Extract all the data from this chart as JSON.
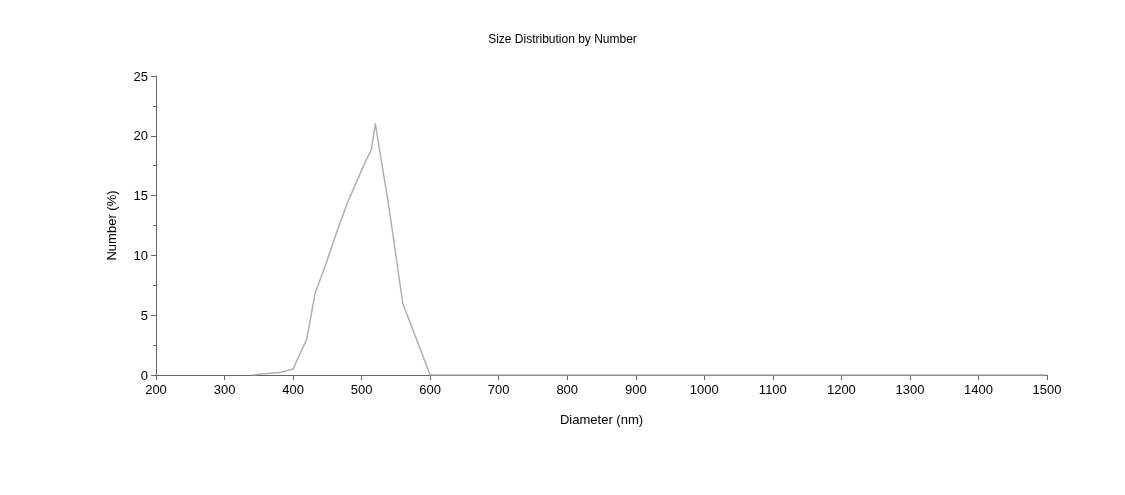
{
  "chart_data": {
    "type": "line",
    "title": "Size Distribution by Number",
    "xlabel": "Diameter (nm)",
    "ylabel": "Number (%)",
    "series": [
      {
        "color": "#b0b0b0",
        "x": [
          340,
          380,
          400,
          420,
          432,
          448,
          464,
          480,
          506,
          514,
          520,
          540,
          560,
          600,
          700,
          800,
          900,
          1000,
          1100,
          1200,
          1300,
          1400,
          1500
        ],
        "values": [
          0,
          0.2,
          0.5,
          3,
          6.8,
          9.3,
          12,
          14.5,
          17.9,
          18.8,
          21,
          14,
          6,
          0,
          0,
          0,
          0,
          0,
          0,
          0,
          0,
          0,
          0
        ]
      }
    ],
    "xlim": [
      200,
      1500
    ],
    "xticks": [
      200,
      300,
      400,
      500,
      600,
      700,
      800,
      900,
      1000,
      1100,
      1200,
      1300,
      1400,
      1500
    ],
    "ylim": [
      0,
      25
    ],
    "yticks": [
      0,
      5,
      10,
      15,
      20,
      25
    ],
    "grid": false,
    "marker": "none",
    "line_style": "solid"
  }
}
